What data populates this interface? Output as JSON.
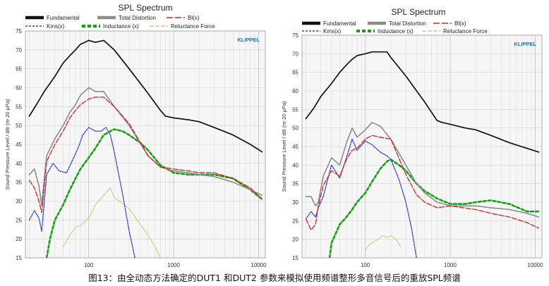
{
  "caption": "图13：由全动态方法确定的DUT1 和DUT2 参数来模拟使用频谱整形多音信号后的重放SPL频谱",
  "colors": {
    "Fundamental": "#111111",
    "Total Distortion": "#8c8c8c",
    "Bl(x)": "#d62020",
    "Kms(x)": "#2a3fd8",
    "Inductance (x)": "#16a016",
    "Reluctance Force": "#c8c878"
  },
  "chart_data": [
    {
      "type": "line",
      "title": "SPL Spectrum",
      "brand": "KLIPPEL",
      "ylabel": "Sound Pressure Level / dB (re 20 µPa)",
      "xlabel": "",
      "xscale": "log",
      "xlim": [
        18,
        12000
      ],
      "ylim": [
        15,
        75
      ],
      "yticks": [
        15,
        20,
        25,
        30,
        35,
        40,
        45,
        50,
        55,
        60,
        65,
        70,
        75
      ],
      "xtick_labels": [
        "100",
        "1000",
        "10000"
      ],
      "xticks": [
        100,
        1000,
        10000
      ],
      "grid": true,
      "legend_position": "top",
      "series": [
        {
          "name": "Fundamental",
          "x": [
            20,
            25,
            30,
            40,
            50,
            60,
            70,
            80,
            90,
            100,
            120,
            150,
            200,
            300,
            500,
            700,
            800,
            1000,
            1500,
            2000,
            3000,
            5000,
            8000,
            11000
          ],
          "y": [
            52.5,
            56,
            59,
            63,
            66.5,
            68.5,
            70,
            71.5,
            72,
            72.5,
            72,
            72.5,
            70,
            65,
            58.5,
            54,
            52.5,
            52,
            51.5,
            51,
            49.5,
            47.5,
            45,
            43
          ]
        },
        {
          "name": "Total Distortion",
          "x": [
            20,
            23,
            26,
            28,
            32,
            40,
            50,
            60,
            70,
            80,
            100,
            120,
            150,
            200,
            300,
            500,
            700,
            1000,
            1500,
            2000,
            3000,
            5000,
            8000,
            11000
          ],
          "y": [
            37,
            38.5,
            34,
            29,
            42,
            46.5,
            50,
            53.5,
            55.5,
            58,
            60,
            59,
            59,
            55,
            50,
            42,
            39,
            38,
            37.5,
            37,
            36.5,
            35,
            33,
            31.5
          ]
        },
        {
          "name": "Bl(x)",
          "x": [
            20,
            23,
            26,
            28,
            32,
            40,
            50,
            60,
            70,
            80,
            100,
            120,
            150,
            200,
            300,
            500,
            700,
            1000,
            1500,
            2000,
            3000,
            5000,
            8000,
            11000
          ],
          "y": [
            35.5,
            33.5,
            30,
            27,
            40.5,
            45,
            48.5,
            52,
            54,
            55.5,
            57,
            57.5,
            57.5,
            55,
            50.5,
            42,
            39,
            38.5,
            38,
            37.5,
            37.5,
            36,
            33.5,
            30.5
          ]
        },
        {
          "name": "Kms(x)",
          "x": [
            20,
            23,
            26,
            28,
            32,
            38,
            45,
            55,
            65,
            75,
            85,
            100,
            120,
            140,
            160,
            180,
            200,
            250,
            300,
            350
          ],
          "y": [
            25,
            27.5,
            25.5,
            22,
            37,
            40,
            38,
            37.5,
            41,
            44,
            47.5,
            49.5,
            48.5,
            48.5,
            49.5,
            47.5,
            43,
            32,
            22,
            15
          ]
        },
        {
          "name": "Inductance (x)",
          "x": [
            32,
            35,
            40,
            50,
            60,
            70,
            80,
            100,
            120,
            150,
            180,
            200,
            250,
            300,
            400,
            500,
            700,
            1000,
            1500,
            2000,
            3000,
            5000,
            8000,
            11000
          ],
          "y": [
            15,
            20,
            25,
            29,
            33,
            36,
            38.5,
            41.5,
            44,
            47.5,
            48.5,
            49,
            48.5,
            47.5,
            45.5,
            43.5,
            39.5,
            37.5,
            37,
            37,
            37,
            36,
            33,
            30.5
          ]
        },
        {
          "name": "Reluctance Force",
          "x": [
            50,
            60,
            70,
            80,
            100,
            120,
            150,
            180,
            200,
            230,
            300,
            400,
            500,
            600,
            700
          ],
          "y": [
            18,
            21,
            23,
            23.5,
            25.5,
            29,
            31.5,
            33.5,
            31,
            30,
            28,
            24,
            21,
            18,
            15
          ]
        }
      ]
    },
    {
      "type": "line",
      "title": "SPL Spectrum",
      "brand": "KLIPPEL",
      "ylabel": "Sound Pressure Level / dB (re 20 µPa)",
      "xlabel": "",
      "xscale": "log",
      "xlim": [
        18,
        12000
      ],
      "ylim": [
        15,
        75
      ],
      "yticks": [
        15,
        20,
        25,
        30,
        35,
        40,
        45,
        50,
        55,
        60,
        65,
        70,
        75
      ],
      "xtick_labels": [
        "100",
        "1000",
        "10000"
      ],
      "xticks": [
        100,
        1000,
        10000
      ],
      "grid": true,
      "legend_position": "top",
      "series": [
        {
          "name": "Fundamental",
          "x": [
            20,
            25,
            30,
            40,
            50,
            60,
            70,
            80,
            100,
            120,
            150,
            180,
            200,
            300,
            500,
            700,
            800,
            1000,
            1500,
            2000,
            3000,
            5000,
            8000,
            11000
          ],
          "y": [
            52.5,
            55.5,
            58.5,
            62,
            65,
            67,
            68.5,
            69.5,
            70,
            70.5,
            70.5,
            70.5,
            69,
            64,
            57,
            52,
            51.5,
            51,
            50,
            49.5,
            48,
            46,
            44.5,
            43.5
          ]
        },
        {
          "name": "Total Distortion",
          "x": [
            20,
            23,
            26,
            28,
            32,
            40,
            50,
            60,
            70,
            80,
            100,
            120,
            150,
            200,
            300,
            400,
            500,
            700,
            1000,
            2000,
            3000,
            5000,
            8000,
            11000
          ],
          "y": [
            31.5,
            31.5,
            29,
            30,
            37,
            42,
            40,
            46,
            50,
            47.5,
            49.5,
            51.5,
            50.5,
            47,
            40,
            35,
            32.5,
            30,
            29,
            29,
            28.5,
            28,
            27,
            26
          ]
        },
        {
          "name": "Bl(x)",
          "x": [
            20,
            23,
            26,
            28,
            32,
            40,
            50,
            60,
            70,
            80,
            100,
            120,
            150,
            200,
            300,
            400,
            500,
            700,
            1000,
            2000,
            3000,
            5000,
            8000,
            11000
          ],
          "y": [
            25.5,
            22.5,
            24,
            29,
            34.5,
            38.5,
            37,
            41.5,
            44,
            44.5,
            47,
            48,
            47.5,
            47,
            37.5,
            32,
            30,
            28.5,
            29,
            28,
            27,
            26,
            24.5,
            23
          ]
        },
        {
          "name": "Kms(x)",
          "x": [
            20,
            23,
            26,
            28,
            32,
            40,
            50,
            60,
            70,
            80,
            100,
            120,
            150,
            180,
            200,
            250,
            300,
            350,
            400
          ],
          "y": [
            25.5,
            27.5,
            26,
            28.5,
            31.5,
            40,
            36.5,
            42,
            47,
            44,
            46.5,
            45.5,
            43.5,
            42.5,
            41.5,
            36,
            30,
            23,
            15
          ]
        },
        {
          "name": "Inductance (x)",
          "x": [
            38,
            40,
            50,
            60,
            70,
            80,
            100,
            120,
            150,
            180,
            200,
            250,
            300,
            400,
            500,
            700,
            1000,
            1500,
            2000,
            3000,
            5000,
            8000,
            11000
          ],
          "y": [
            15,
            19,
            24,
            26,
            28,
            30,
            32.5,
            35.5,
            39,
            41,
            41.5,
            40,
            38.5,
            35,
            33,
            31,
            29.5,
            29.5,
            30,
            30.5,
            29.5,
            27.5,
            27.5
          ]
        },
        {
          "name": "Reluctance Force",
          "x": [
            100,
            110,
            120,
            140,
            160,
            180,
            200,
            230,
            260
          ],
          "y": [
            17,
            18.5,
            19,
            20,
            21,
            20.5,
            21,
            20,
            18
          ]
        }
      ]
    }
  ]
}
